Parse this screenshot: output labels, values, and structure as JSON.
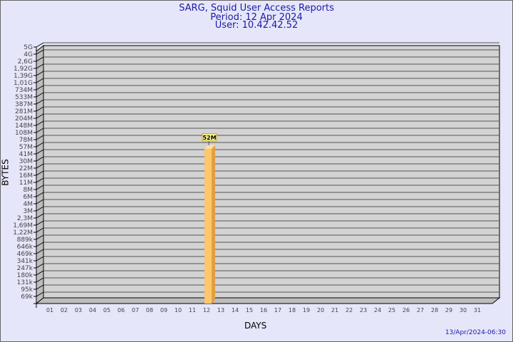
{
  "chart_data": {
    "type": "bar",
    "title": "SARG, Squid User Access Reports",
    "subtitle": [
      "Period: 12 Apr 2024",
      "User: 10.42.42.52"
    ],
    "xlabel": "DAYS",
    "ylabel": "BYTES",
    "categories": [
      "01",
      "02",
      "03",
      "04",
      "05",
      "06",
      "07",
      "08",
      "09",
      "10",
      "11",
      "12",
      "13",
      "14",
      "15",
      "16",
      "17",
      "18",
      "19",
      "20",
      "21",
      "22",
      "23",
      "24",
      "25",
      "26",
      "27",
      "28",
      "29",
      "30",
      "31"
    ],
    "y_tick_labels": [
      "5G",
      "4G",
      "2,6G",
      "1,92G",
      "1,39G",
      "1,01G",
      "734M",
      "533M",
      "387M",
      "281M",
      "204M",
      "148M",
      "108M",
      "78M",
      "57M",
      "41M",
      "30M",
      "22M",
      "16M",
      "11M",
      "8M",
      "6M",
      "4M",
      "3M",
      "2,3M",
      "1,69M",
      "1,22M",
      "889k",
      "646k",
      "469k",
      "341k",
      "247k",
      "180k",
      "131k",
      "95k",
      "69k"
    ],
    "y_scale": "log",
    "values": [
      {
        "day": "12",
        "bytes_label": "52M",
        "bytes": 52000000
      }
    ],
    "grid": true,
    "footer": "13/Apr/2024-06:30",
    "colors": {
      "bar": "#ffc76a",
      "bar_side": "#e0a040",
      "plot": "#d3d3d3",
      "title": "#1a1aa6",
      "background": "#e6e6fa"
    }
  }
}
